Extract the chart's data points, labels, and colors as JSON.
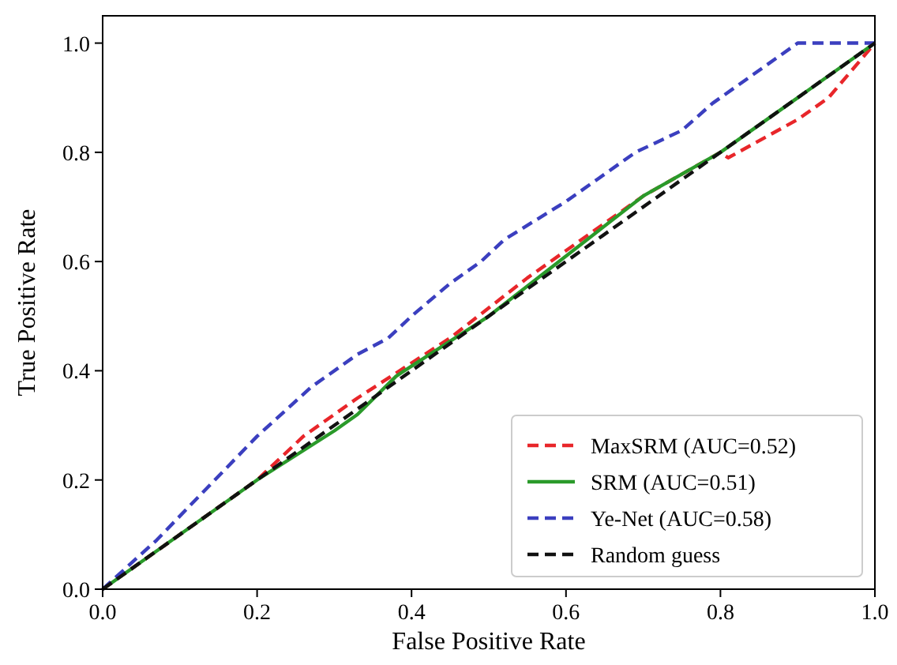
{
  "chart_data": {
    "type": "line",
    "xlabel": "False Positive Rate",
    "ylabel": "True Positive Rate",
    "xlim": [
      0,
      1
    ],
    "ylim": [
      0,
      1.05
    ],
    "xticks": [
      {
        "value": 0,
        "label": "0.0"
      },
      {
        "value": 0.2,
        "label": "0.2"
      },
      {
        "value": 0.4,
        "label": "0.4"
      },
      {
        "value": 0.6,
        "label": "0.6"
      },
      {
        "value": 0.8,
        "label": "0.8"
      },
      {
        "value": 1,
        "label": "1.0"
      }
    ],
    "yticks": [
      {
        "value": 0,
        "label": "0.0"
      },
      {
        "value": 0.2,
        "label": "0.2"
      },
      {
        "value": 0.4,
        "label": "0.4"
      },
      {
        "value": 0.6,
        "label": "0.6"
      },
      {
        "value": 0.8,
        "label": "0.8"
      },
      {
        "value": 1,
        "label": "1.0"
      }
    ],
    "grid": false,
    "legend": "bottom right",
    "marker": "none",
    "series": [
      {
        "name": "MaxSRM (AUC=0.52)",
        "color": "#e8262a",
        "line_style": "dashed",
        "x": [
          0,
          0.2,
          0.26,
          0.33,
          0.45,
          0.55,
          0.7,
          0.8,
          0.81,
          0.9,
          0.94,
          1
        ],
        "values": [
          0,
          0.2,
          0.28,
          0.35,
          0.46,
          0.57,
          0.72,
          0.8,
          0.79,
          0.86,
          0.9,
          1
        ]
      },
      {
        "name": "SRM (AUC=0.51)",
        "color": "#2a9a2a",
        "line_style": "solid",
        "x": [
          0,
          0.2,
          0.3,
          0.33,
          0.38,
          0.5,
          0.6,
          0.7,
          0.8,
          1
        ],
        "values": [
          0,
          0.2,
          0.29,
          0.32,
          0.39,
          0.5,
          0.61,
          0.72,
          0.8,
          1
        ]
      },
      {
        "name": "Ye-Net (AUC=0.58)",
        "color": "#3b3fbf",
        "line_style": "dashed",
        "x": [
          0,
          0.07,
          0.2,
          0.27,
          0.33,
          0.37,
          0.4,
          0.45,
          0.49,
          0.52,
          0.6,
          0.64,
          0.69,
          0.75,
          0.79,
          0.83,
          0.86,
          0.9,
          1
        ],
        "values": [
          0,
          0.09,
          0.28,
          0.37,
          0.43,
          0.46,
          0.5,
          0.56,
          0.6,
          0.64,
          0.71,
          0.75,
          0.8,
          0.84,
          0.89,
          0.93,
          0.96,
          1,
          1
        ]
      },
      {
        "name": "Random guess",
        "color": "#111111",
        "line_style": "dashed",
        "x": [
          0,
          1
        ],
        "values": [
          0,
          1
        ]
      }
    ]
  }
}
